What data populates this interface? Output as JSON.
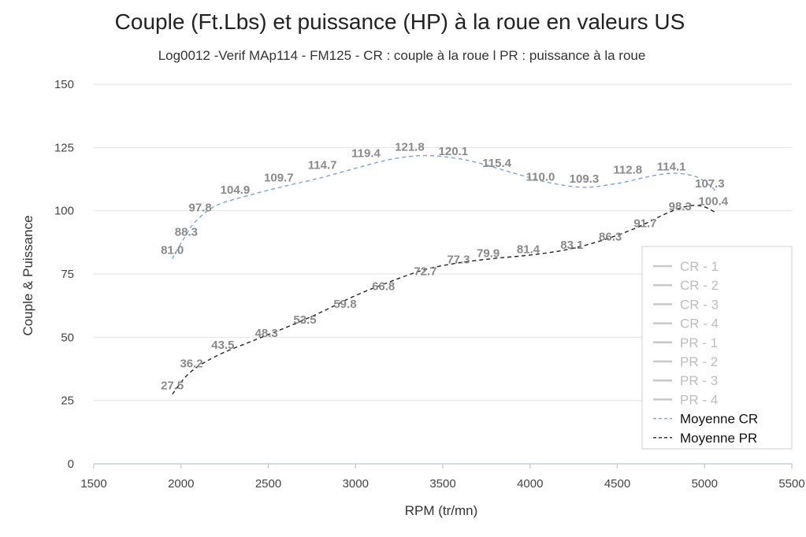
{
  "chart_data": {
    "type": "line",
    "title": "Couple (Ft.Lbs) et puissance (HP) à la roue en valeurs US",
    "subtitle": "Log0012 -Verif MAp114 - FM125 - CR : couple à la roue l PR : puissance à la roue",
    "xlabel": "RPM (tr/mn)",
    "ylabel": "Couple & Puissance",
    "xlim": [
      1500,
      5500
    ],
    "ylim": [
      0,
      150
    ],
    "xticks": [
      "1500",
      "2000",
      "2500",
      "3000",
      "3500",
      "4000",
      "4500",
      "5000",
      "5500"
    ],
    "yticks": [
      "0",
      "25",
      "50",
      "75",
      "100",
      "125",
      "150"
    ],
    "grid": true,
    "legend_position": "bottom-right",
    "legend": [
      {
        "name": "CR - 1",
        "style": "solid",
        "color": "#c8c8c8",
        "text_color": "#bdbdbd"
      },
      {
        "name": "CR - 2",
        "style": "solid",
        "color": "#c8c8c8",
        "text_color": "#bdbdbd"
      },
      {
        "name": "CR - 3",
        "style": "solid",
        "color": "#c8c8c8",
        "text_color": "#bdbdbd"
      },
      {
        "name": "CR - 4",
        "style": "solid",
        "color": "#c8c8c8",
        "text_color": "#bdbdbd"
      },
      {
        "name": "PR - 1",
        "style": "solid",
        "color": "#c8c8c8",
        "text_color": "#bdbdbd"
      },
      {
        "name": "PR - 2",
        "style": "solid",
        "color": "#c8c8c8",
        "text_color": "#bdbdbd"
      },
      {
        "name": "PR - 3",
        "style": "solid",
        "color": "#c8c8c8",
        "text_color": "#bdbdbd"
      },
      {
        "name": "PR - 4",
        "style": "solid",
        "color": "#c8c8c8",
        "text_color": "#bdbdbd"
      },
      {
        "name": "Moyenne CR",
        "style": "dashed",
        "color": "#7aa3d8",
        "text_color": "#111111"
      },
      {
        "name": "Moyenne PR",
        "style": "dashed",
        "color": "#222222",
        "text_color": "#111111"
      }
    ],
    "series": [
      {
        "name": "Moyenne CR",
        "color": "#7aa3d8",
        "curve_x": [
          1950,
          2010,
          2080,
          2200,
          2400,
          2600,
          2800,
          3000,
          3200,
          3380,
          3550,
          3700,
          3900,
          4100,
          4300,
          4500,
          4700,
          4830,
          4950,
          5030,
          5070
        ],
        "curve_y": [
          81.0,
          88.3,
          95.5,
          102.0,
          106.3,
          109.8,
          113.0,
          116.8,
          120.3,
          121.8,
          121.0,
          119.0,
          115.0,
          111.3,
          109.3,
          110.8,
          113.8,
          114.8,
          113.5,
          110.0,
          107.3
        ],
        "labels": [
          {
            "x": 1950,
            "y": 81.0,
            "text": "81.0"
          },
          {
            "x": 2030,
            "y": 88.3,
            "text": "88.3"
          },
          {
            "x": 2110,
            "y": 97.8,
            "text": "97.8"
          },
          {
            "x": 2310,
            "y": 104.9,
            "text": "104.9"
          },
          {
            "x": 2560,
            "y": 109.7,
            "text": "109.7"
          },
          {
            "x": 2810,
            "y": 114.7,
            "text": "114.7"
          },
          {
            "x": 3060,
            "y": 119.4,
            "text": "119.4"
          },
          {
            "x": 3310,
            "y": 121.8,
            "text": "121.8"
          },
          {
            "x": 3560,
            "y": 120.1,
            "text": "120.1"
          },
          {
            "x": 3810,
            "y": 115.4,
            "text": "115.4"
          },
          {
            "x": 4060,
            "y": 110.0,
            "text": "110.0"
          },
          {
            "x": 4310,
            "y": 109.3,
            "text": "109.3"
          },
          {
            "x": 4560,
            "y": 112.8,
            "text": "112.8"
          },
          {
            "x": 4810,
            "y": 114.1,
            "text": "114.1"
          },
          {
            "x": 5030,
            "y": 107.3,
            "text": "107.3"
          }
        ]
      },
      {
        "name": "Moyenne PR",
        "color": "#222222",
        "curve_x": [
          1950,
          2050,
          2200,
          2400,
          2600,
          2800,
          3000,
          3200,
          3400,
          3600,
          3800,
          4000,
          4200,
          4400,
          4600,
          4800,
          4920,
          5000,
          5070
        ],
        "curve_y": [
          27.5,
          36.0,
          42.5,
          48.3,
          53.8,
          59.8,
          66.5,
          72.0,
          76.8,
          79.5,
          81.2,
          82.5,
          84.5,
          88.0,
          93.0,
          99.5,
          102.0,
          101.5,
          99.0
        ],
        "labels": [
          {
            "x": 1950,
            "y": 27.5,
            "text": "27.5"
          },
          {
            "x": 2060,
            "y": 36.2,
            "text": "36.2"
          },
          {
            "x": 2240,
            "y": 43.5,
            "text": "43.5"
          },
          {
            "x": 2490,
            "y": 48.3,
            "text": "48.3"
          },
          {
            "x": 2710,
            "y": 53.5,
            "text": "53.5"
          },
          {
            "x": 2940,
            "y": 59.8,
            "text": "59.8"
          },
          {
            "x": 3160,
            "y": 66.8,
            "text": "66.8"
          },
          {
            "x": 3400,
            "y": 72.7,
            "text": "72.7"
          },
          {
            "x": 3590,
            "y": 77.3,
            "text": "77.3"
          },
          {
            "x": 3760,
            "y": 79.9,
            "text": "79.9"
          },
          {
            "x": 3990,
            "y": 81.4,
            "text": "81.4"
          },
          {
            "x": 4240,
            "y": 83.1,
            "text": "83.1"
          },
          {
            "x": 4460,
            "y": 86.3,
            "text": "86.3"
          },
          {
            "x": 4660,
            "y": 91.7,
            "text": "91.7"
          },
          {
            "x": 4860,
            "y": 98.3,
            "text": "98.3"
          },
          {
            "x": 5050,
            "y": 100.4,
            "text": "100.4"
          }
        ]
      }
    ]
  }
}
